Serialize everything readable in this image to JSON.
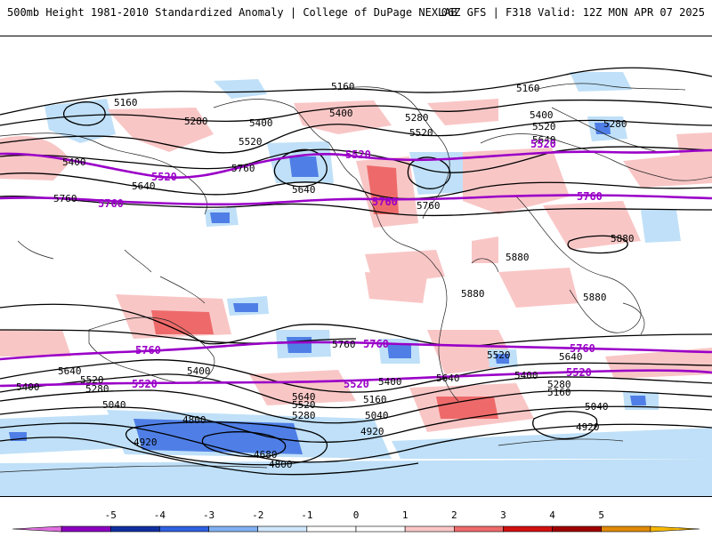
{
  "header": {
    "left": "500mb Height 1981-2010 Standardized Anomaly | College of DuPage NEXLAB",
    "right": "06Z GFS | F318 Valid: 12Z MON APR 07 2025"
  },
  "colors": {
    "contour": "#000000",
    "highlight_contour": "#9a00c8",
    "coast": "#222222",
    "anom_neg1": "#bfe0f8",
    "anom_neg2": "#4f7fe6",
    "anom_neg3": "#1e3fb8",
    "anom_pos1": "#f9c6c6",
    "anom_pos2": "#ee6a6a",
    "anom_pos3": "#c81414"
  },
  "contour_labels": [
    "5160",
    "5160",
    "5160",
    "5280",
    "5280",
    "5280",
    "5400",
    "5400",
    "5400",
    "5400",
    "5520",
    "5520",
    "5520",
    "5640",
    "5640",
    "5640",
    "5760",
    "5760",
    "5760",
    "5880",
    "5880",
    "5880",
    "5880",
    "5760",
    "5640",
    "5400",
    "5640",
    "5520",
    "5400",
    "5280",
    "5040",
    "4920",
    "4800",
    "4680",
    "4800",
    "5640",
    "5520",
    "5280",
    "5160",
    "5040",
    "4920",
    "5400",
    "5640",
    "5520",
    "5400",
    "5280",
    "5160",
    "5040",
    "4920"
  ],
  "highlight_labels": [
    "5520",
    "5520",
    "5520",
    "5760",
    "5760",
    "5760",
    "5760",
    "5760",
    "5760",
    "5520",
    "5520",
    "5520"
  ],
  "colorbar": {
    "ticks": [
      "-5",
      "-4",
      "-3",
      "-2",
      "-1",
      "0",
      "1",
      "2",
      "3",
      "4",
      "5"
    ],
    "colors": [
      "#e070e0",
      "#8a00c0",
      "#1030a0",
      "#3060e0",
      "#80b0f0",
      "#cfe6fb",
      "#ffffff",
      "#ffffff",
      "#f9c6c6",
      "#ee6a6a",
      "#d01010",
      "#a00000",
      "#e08a00",
      "#f5b800"
    ]
  }
}
